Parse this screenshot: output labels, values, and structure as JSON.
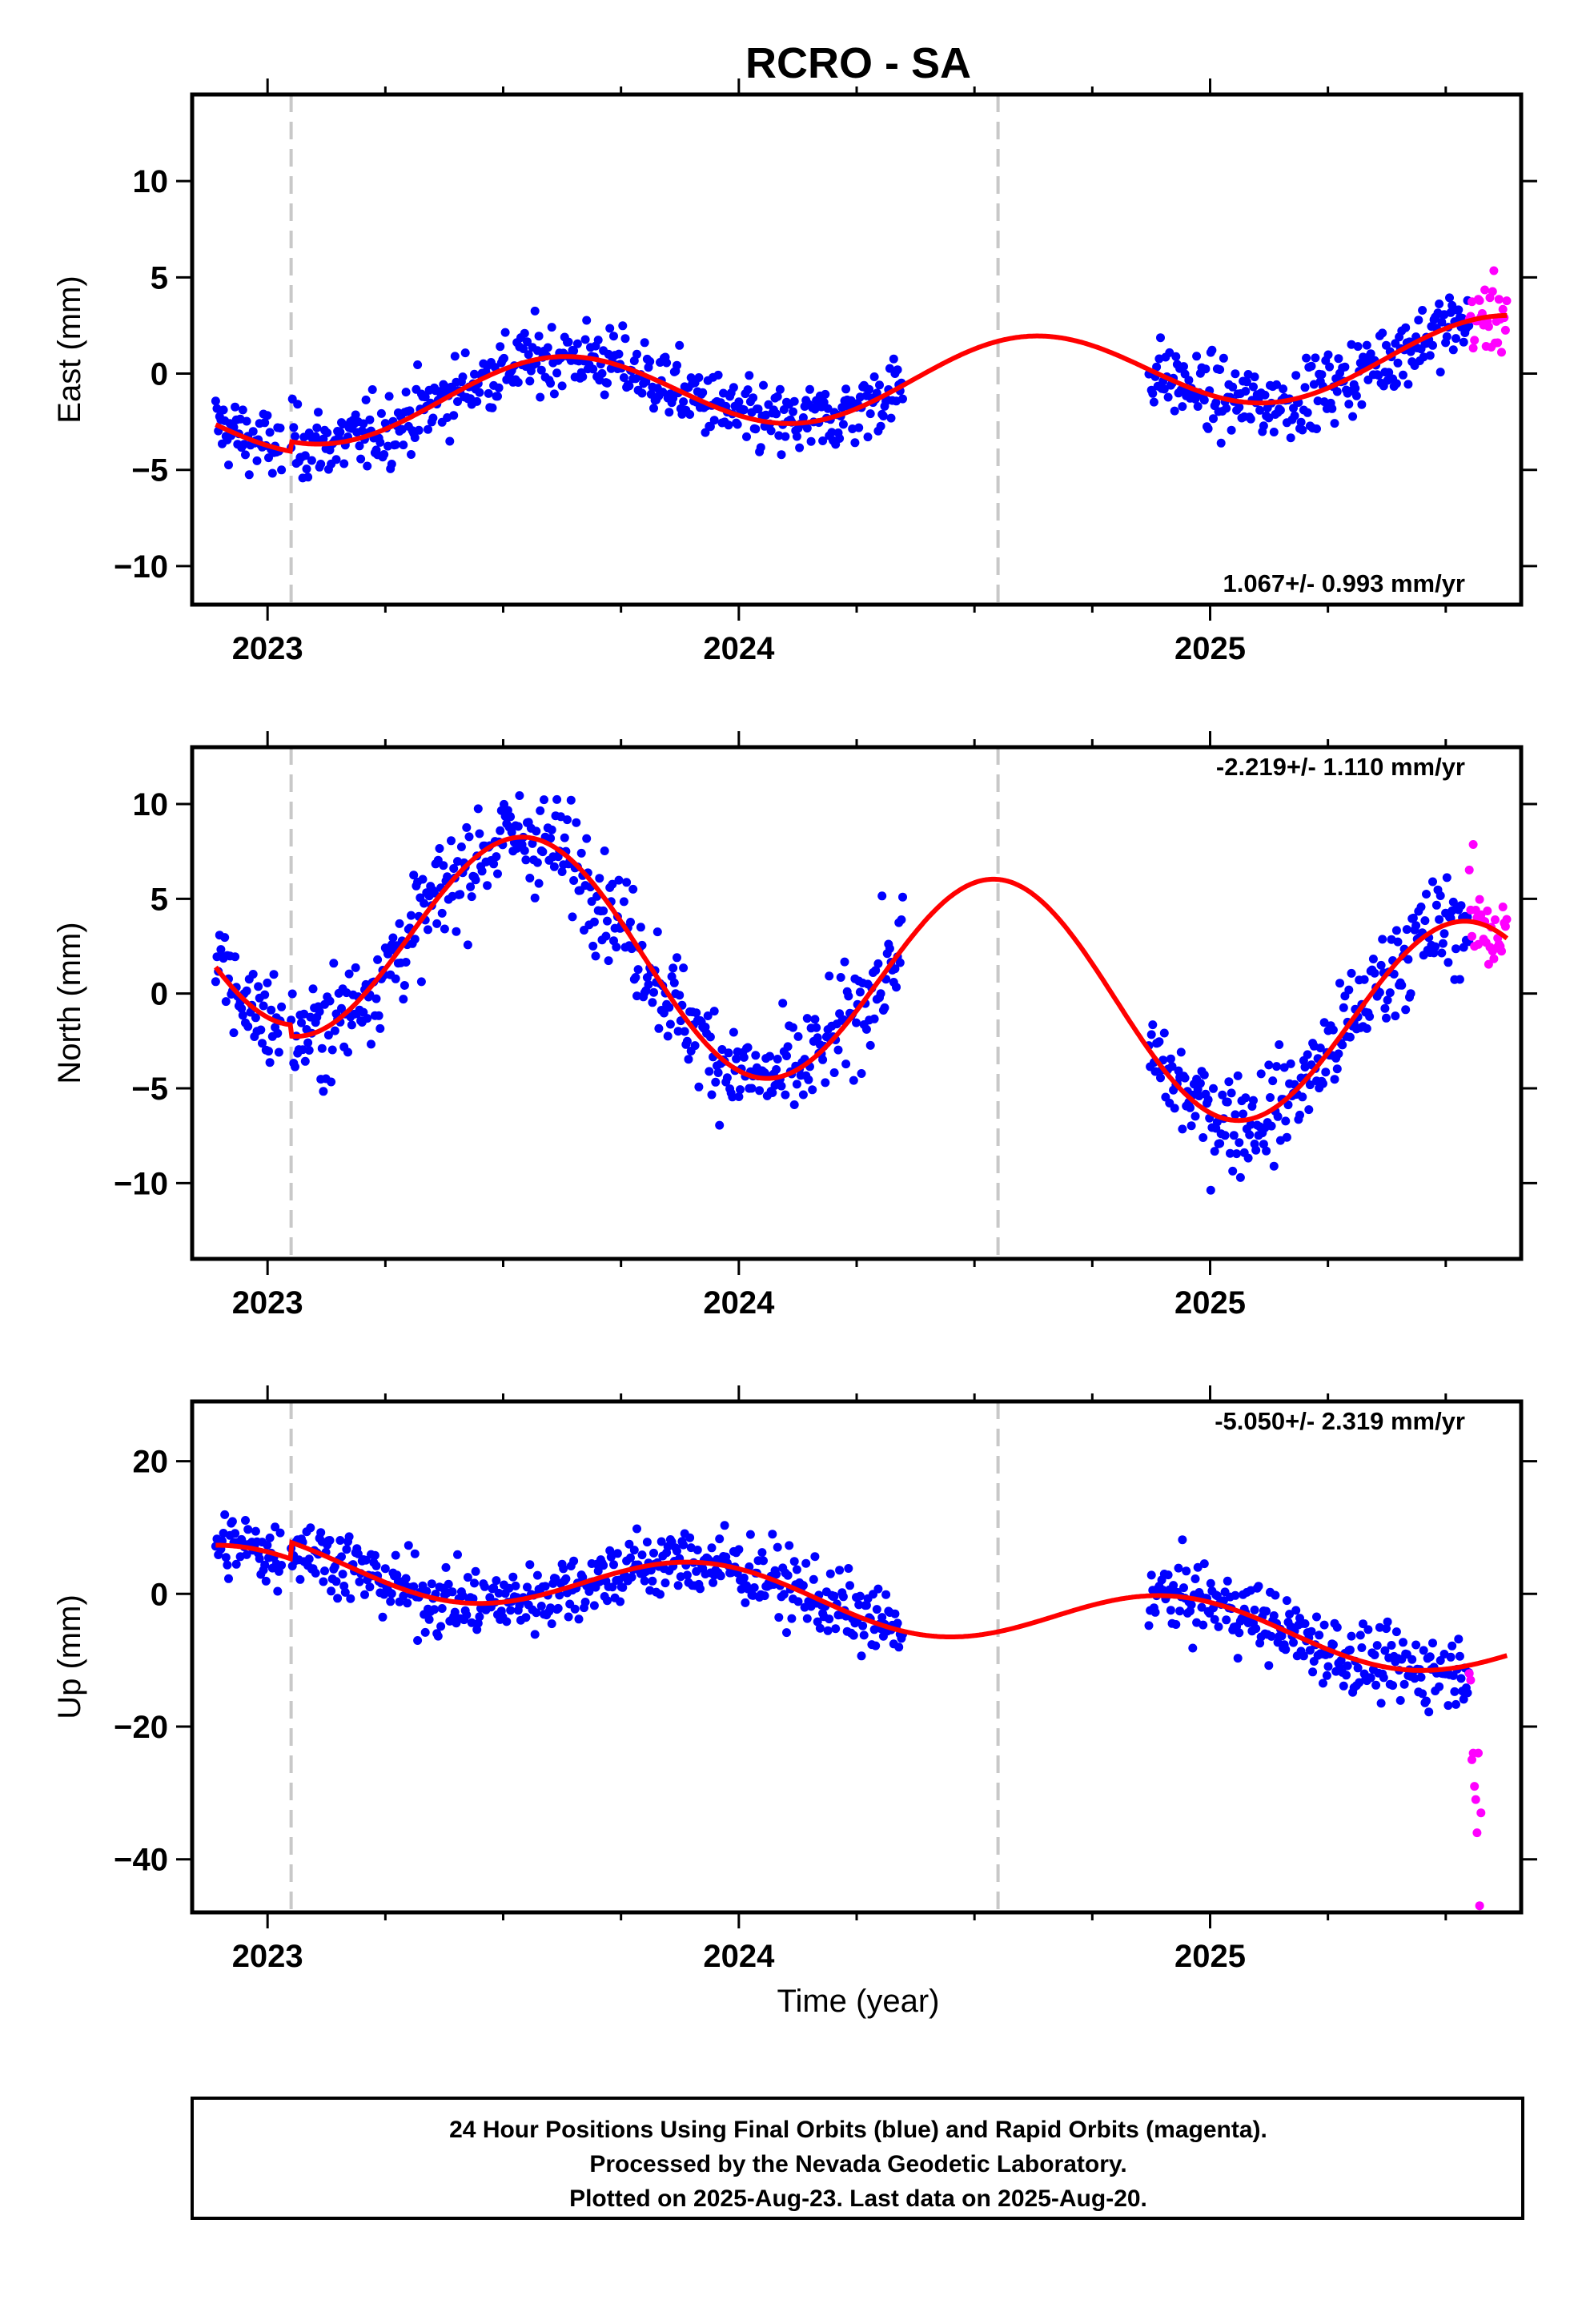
{
  "title": "RCRO - SA",
  "xlabel": "Time (year)",
  "caption": [
    "24 Hour Positions Using Final Orbits (blue) and Rapid Orbits (magenta).",
    "Processed by the Nevada Geodetic Laboratory.",
    "Plotted on 2025-Aug-23. Last data on 2025-Aug-20."
  ],
  "colors": {
    "final": "#0000ff",
    "rapid": "#ff00ff",
    "model": "#ff0000",
    "break": "#c8c8c8",
    "frame": "#000000"
  },
  "chart_data": [
    {
      "type": "scatter",
      "component": "east",
      "ylabel": "East (mm)",
      "xlim": [
        2022.84,
        2025.66
      ],
      "ylim": [
        -12,
        14.5
      ],
      "xticks": [
        2023,
        2024,
        2025
      ],
      "xtick_labels": [
        "2023",
        "2024",
        "2025"
      ],
      "yticks": [
        -10,
        -5,
        0,
        5,
        10
      ],
      "ytick_labels": [
        "−10",
        "−5",
        "0",
        "5",
        "10"
      ],
      "rate_text": "1.067+/- 0.993 mm/yr",
      "rate_position": "bottom-right",
      "breaks": [
        2023.05,
        2024.55
      ],
      "trend": {
        "mean": -0.5,
        "rate": 1.067,
        "t0": 2024.2,
        "annual_amp": 2.0,
        "annual_peak": 2023.62,
        "jump_at_2023_05": 0.5
      },
      "series": [
        {
          "name": "Final Orbits",
          "color": "#0000ff",
          "segments": [
            [
              2022.89,
              2023.03
            ],
            [
              2023.05,
              2024.35
            ],
            [
              2024.87,
              2025.55
            ]
          ],
          "daily": 1
        },
        {
          "name": "Rapid Orbits",
          "color": "#ff00ff",
          "segments": [
            [
              2025.55,
              2025.63
            ]
          ],
          "daily": 1
        }
      ]
    },
    {
      "type": "scatter",
      "component": "north",
      "ylabel": "North (mm)",
      "xlim": [
        2022.84,
        2025.66
      ],
      "ylim": [
        -14,
        13
      ],
      "xticks": [
        2023,
        2024,
        2025
      ],
      "xtick_labels": [
        "2023",
        "2024",
        "2025"
      ],
      "yticks": [
        -10,
        -5,
        0,
        5,
        10
      ],
      "ytick_labels": [
        "−10",
        "−5",
        "0",
        "5",
        "10"
      ],
      "rate_text": "-2.219+/- 1.110 mm/yr",
      "rate_position": "top-right",
      "breaks": [
        2023.05,
        2024.55
      ],
      "trend": {
        "mean": 1.0,
        "rate": -2.219,
        "t0": 2024.2,
        "annual_amp": 5.8,
        "annual_peak": 2023.55,
        "jump_at_2023_05": -0.6
      },
      "series": [
        {
          "name": "Final Orbits",
          "color": "#0000ff",
          "segments": [
            [
              2022.89,
              2023.03
            ],
            [
              2023.05,
              2024.35
            ],
            [
              2024.87,
              2025.55
            ]
          ],
          "daily": 1
        },
        {
          "name": "Rapid Orbits",
          "color": "#ff00ff",
          "segments": [
            [
              2025.55,
              2025.63
            ]
          ],
          "daily": 1
        }
      ]
    },
    {
      "type": "scatter",
      "component": "up",
      "ylabel": "Up (mm)",
      "xlim": [
        2022.84,
        2025.66
      ],
      "ylim": [
        -48,
        29
      ],
      "xticks": [
        2023,
        2024,
        2025
      ],
      "xtick_labels": [
        "2023",
        "2024",
        "2025"
      ],
      "yticks": [
        -40,
        -20,
        0,
        20
      ],
      "ytick_labels": [
        "−40",
        "−20",
        "0",
        "20"
      ],
      "rate_text": "-5.050+/- 2.319 mm/yr",
      "rate_position": "top-right",
      "breaks": [
        2023.05,
        2024.55
      ],
      "trend": {
        "mean": -1.0,
        "rate": -5.05,
        "t0": 2024.2,
        "annual_amp": 4.3,
        "annual_peak": 2023.92,
        "jump_at_2023_05": 2.5
      },
      "series": [
        {
          "name": "Final Orbits",
          "color": "#0000ff",
          "segments": [
            [
              2022.89,
              2023.03
            ],
            [
              2023.05,
              2024.35
            ],
            [
              2024.87,
              2025.55
            ]
          ],
          "daily": 1
        },
        {
          "name": "Rapid Orbits",
          "color": "#ff00ff",
          "segments": [
            [
              2025.55,
              2025.63
            ]
          ],
          "daily": 1,
          "values": [
            -12,
            -13,
            -25,
            -24,
            -29,
            -31,
            -36,
            -24,
            -47,
            -33
          ]
        }
      ]
    }
  ]
}
